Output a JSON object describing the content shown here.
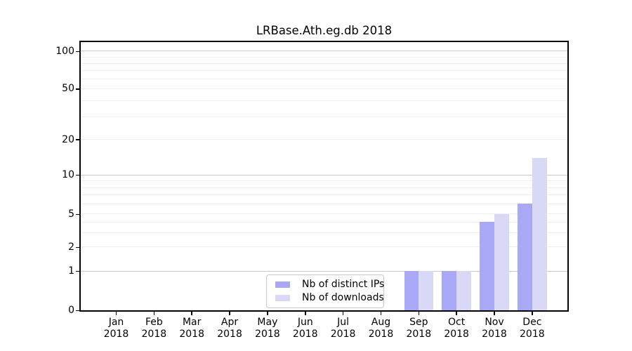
{
  "chart_data": {
    "type": "bar",
    "title": "LRBase.Ath.eg.db 2018",
    "categories": [
      "Jan 2018",
      "Feb 2018",
      "Mar 2018",
      "Apr 2018",
      "May 2018",
      "Jun 2018",
      "Jul 2018",
      "Aug 2018",
      "Sep 2018",
      "Oct 2018",
      "Nov 2018",
      "Dec 2018"
    ],
    "series": [
      {
        "name": "Nb of distinct IPs",
        "color": "#a8a8f6",
        "values": [
          0,
          0,
          0,
          0,
          0,
          0,
          0,
          0,
          1,
          1,
          4,
          6
        ]
      },
      {
        "name": "Nb of downloads",
        "color": "#d9d9f7",
        "values": [
          0,
          0,
          0,
          0,
          0,
          0,
          0,
          0,
          1,
          1,
          5,
          14
        ]
      }
    ],
    "xlabel": "",
    "ylabel": "",
    "yticks": [
      0,
      1,
      2,
      5,
      10,
      20,
      50,
      100
    ],
    "ylim": [
      0,
      118
    ],
    "grid": {
      "major": [
        1,
        10,
        100
      ],
      "minor": [
        2,
        3,
        4,
        5,
        6,
        7,
        8,
        9,
        20,
        30,
        40,
        50,
        60,
        70,
        80,
        90
      ]
    },
    "legend_position": "inside lower center",
    "colors": {
      "grid_major": "#c9c9c9",
      "grid_minor": "#efefef",
      "spine": "#000000"
    },
    "scale": {
      "type": "log above 1, linear 0-1 (symlog-like)",
      "anchors": [
        [
          0,
          0
        ],
        [
          1,
          0.1464
        ],
        [
          2,
          0.2358
        ],
        [
          5,
          0.3588
        ],
        [
          10,
          0.5052
        ],
        [
          20,
          0.6373
        ],
        [
          50,
          0.8264
        ],
        [
          100,
          0.9663
        ]
      ]
    }
  }
}
